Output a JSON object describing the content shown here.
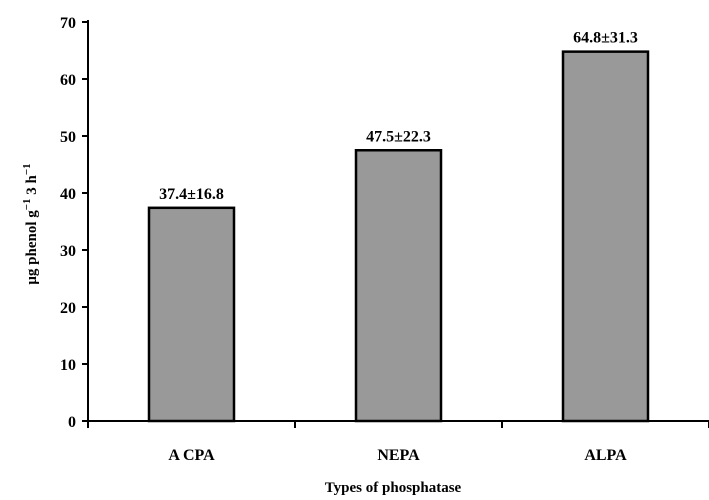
{
  "chart_data": {
    "type": "bar",
    "categories": [
      "A CPA",
      "NEPA",
      "ALPA"
    ],
    "values": [
      37.4,
      47.5,
      64.8
    ],
    "data_labels": [
      "37.4±16.8",
      "47.5±22.3",
      "64.8±31.3"
    ],
    "title": "",
    "xlabel": "Types of phosphatase",
    "ylabel_parts": {
      "base": "μg phenol g",
      "exp1": "−1",
      "mid": " 3 h",
      "exp2": "−1"
    },
    "ylim": [
      0,
      70
    ],
    "yticks": [
      "0",
      "10",
      "20",
      "30",
      "40",
      "50",
      "60",
      "70"
    ],
    "grid": false,
    "legend": "none",
    "bar_color": "#999999",
    "bar_edge_color": "#000000"
  }
}
